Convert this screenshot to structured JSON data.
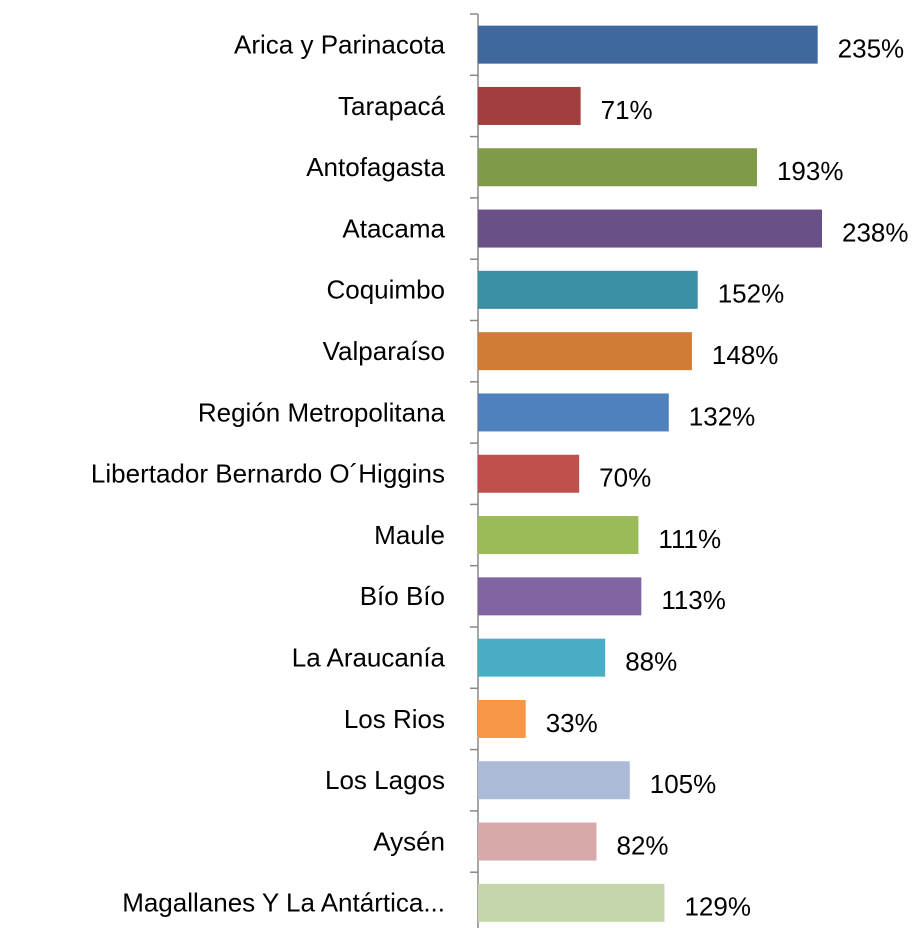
{
  "chart_data": {
    "type": "bar",
    "orientation": "horizontal",
    "categories": [
      "Arica y Parinacota",
      "Tarapacá",
      "Antofagasta",
      "Atacama",
      "Coquimbo",
      "Valparaíso",
      "Región Metropolitana",
      "Libertador Bernardo O´Higgins",
      "Maule",
      "Bío Bío",
      "La Araucanía",
      "Los Rios",
      "Los Lagos",
      "Aysén",
      "Magallanes Y La Antártica..."
    ],
    "values": [
      235,
      71,
      193,
      238,
      152,
      148,
      132,
      70,
      111,
      113,
      88,
      33,
      105,
      82,
      129
    ],
    "value_labels": [
      "235%",
      "71%",
      "193%",
      "238%",
      "152%",
      "148%",
      "132%",
      "70%",
      "111%",
      "113%",
      "88%",
      "33%",
      "105%",
      "82%",
      "129%"
    ],
    "colors": [
      "#3f67a0",
      "#a03f3d",
      "#7f9a48",
      "#6a5088",
      "#3a8fa4",
      "#d07c37",
      "#4f81bd",
      "#c0504d",
      "#9bbb59",
      "#8064a2",
      "#4bacc6",
      "#f79646",
      "#aabad7",
      "#d9a9a9",
      "#c6d6ac"
    ]
  }
}
